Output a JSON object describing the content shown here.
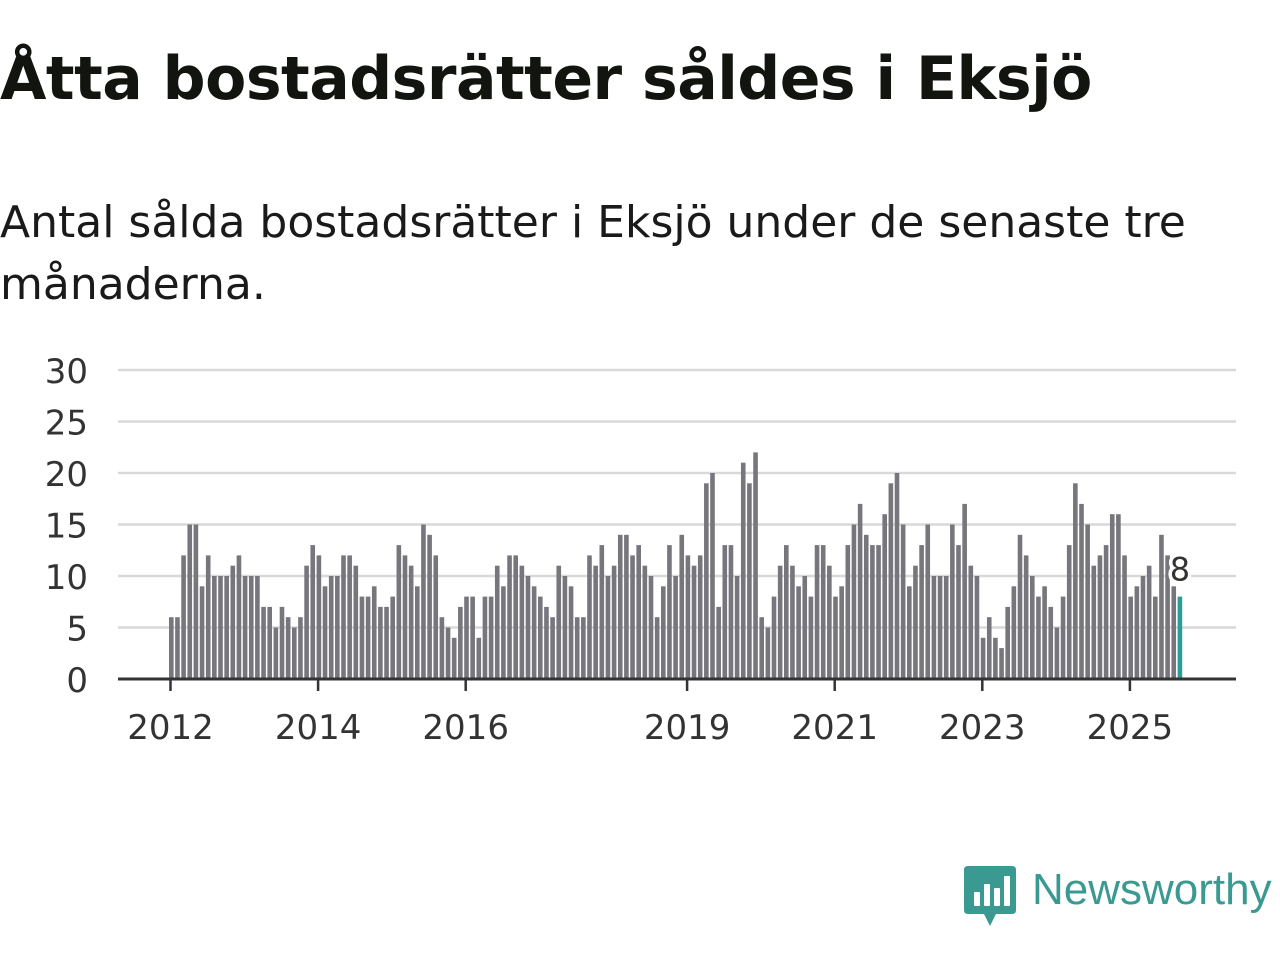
{
  "title": "Åtta bostadsrätter såldes i Eksjö",
  "subtitle": "Antal sålda bostadsrätter i Eksjö under de senaste tre månaderna.",
  "brand": {
    "name": "Newsworthy",
    "color": "#3a9a92"
  },
  "colors": {
    "bar": "#76767c",
    "highlight": "#2b9d95",
    "grid": "#d9d9d9",
    "axis": "#333333"
  },
  "chart_data": {
    "type": "bar",
    "title": "Åtta bostadsrätter såldes i Eksjö",
    "xlabel": "",
    "ylabel": "",
    "ylim": [
      0,
      30
    ],
    "yticks": [
      0,
      5,
      10,
      15,
      20,
      25,
      30
    ],
    "xticks": [
      {
        "label": "2012",
        "index": 0
      },
      {
        "label": "2014",
        "index": 24
      },
      {
        "label": "2016",
        "index": 48
      },
      {
        "label": "2019",
        "index": 84
      },
      {
        "label": "2021",
        "index": 108
      },
      {
        "label": "2023",
        "index": 132
      },
      {
        "label": "2025",
        "index": 156
      }
    ],
    "start": "2012-01",
    "grid": true,
    "highlight_label": "8",
    "values": [
      6,
      6,
      12,
      15,
      15,
      9,
      12,
      10,
      10,
      10,
      11,
      12,
      10,
      10,
      10,
      7,
      7,
      5,
      7,
      6,
      5,
      6,
      11,
      13,
      12,
      9,
      10,
      10,
      12,
      12,
      11,
      8,
      8,
      9,
      7,
      7,
      8,
      13,
      12,
      11,
      9,
      15,
      14,
      12,
      6,
      5,
      4,
      7,
      8,
      8,
      4,
      8,
      8,
      11,
      9,
      12,
      12,
      11,
      10,
      9,
      8,
      7,
      6,
      11,
      10,
      9,
      6,
      6,
      12,
      11,
      13,
      10,
      11,
      14,
      14,
      12,
      13,
      11,
      10,
      6,
      9,
      13,
      10,
      14,
      12,
      11,
      12,
      19,
      20,
      7,
      13,
      13,
      10,
      21,
      19,
      22,
      6,
      5,
      8,
      11,
      13,
      11,
      9,
      10,
      8,
      13,
      13,
      11,
      8,
      9,
      13,
      15,
      17,
      14,
      13,
      13,
      16,
      19,
      20,
      15,
      9,
      11,
      13,
      15,
      10,
      10,
      10,
      15,
      13,
      17,
      11,
      10,
      4,
      6,
      4,
      3,
      7,
      9,
      14,
      12,
      10,
      8,
      9,
      7,
      5,
      8,
      13,
      19,
      17,
      15,
      11,
      12,
      13,
      16,
      16,
      12,
      8,
      9,
      10,
      11,
      8,
      14,
      12,
      9,
      8
    ]
  }
}
